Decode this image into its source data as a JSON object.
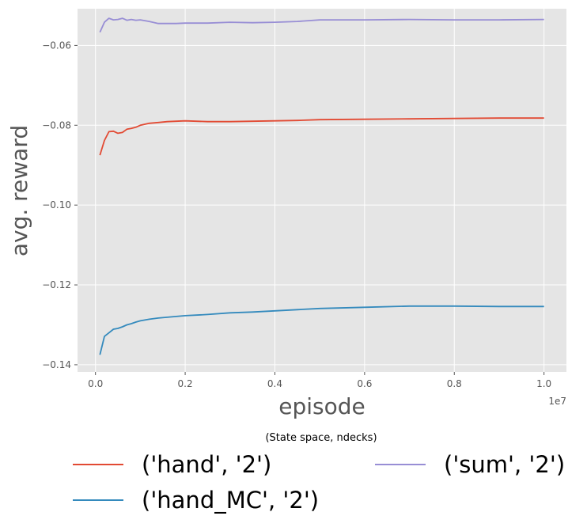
{
  "chart_data": {
    "type": "line",
    "xlabel": "episode",
    "ylabel": "avg. reward",
    "x_offset_text": "1e7",
    "xlim": [
      -0.04,
      1.05
    ],
    "ylim": [
      -0.1418,
      -0.0508
    ],
    "x_ticks": [
      0.0,
      0.2,
      0.4,
      0.6,
      0.8,
      1.0
    ],
    "x_tick_labels": [
      "0.0",
      "0.2",
      "0.4",
      "0.6",
      "0.8",
      "1.0"
    ],
    "y_ticks": [
      -0.06,
      -0.08,
      -0.1,
      -0.12,
      -0.14
    ],
    "y_tick_labels": [
      "−0.06",
      "−0.08",
      "−0.10",
      "−0.12",
      "−0.14"
    ],
    "grid": true,
    "legend_title": "(State space, ndecks)",
    "legend_position": "below",
    "colors": {
      "background": "#E5E5E5",
      "grid": "#FFFFFF"
    },
    "series": [
      {
        "name": "('hand', '2')",
        "color": "#E24A33",
        "x": [
          0.01,
          0.02,
          0.03,
          0.04,
          0.05,
          0.06,
          0.07,
          0.08,
          0.09,
          0.1,
          0.12,
          0.14,
          0.16,
          0.18,
          0.2,
          0.25,
          0.3,
          0.35,
          0.4,
          0.45,
          0.5,
          0.6,
          0.7,
          0.8,
          0.9,
          1.0
        ],
        "y": [
          -0.0875,
          -0.0838,
          -0.0816,
          -0.0815,
          -0.082,
          -0.0818,
          -0.081,
          -0.0808,
          -0.0805,
          -0.08,
          -0.0795,
          -0.0793,
          -0.0791,
          -0.079,
          -0.0789,
          -0.0791,
          -0.0791,
          -0.079,
          -0.0789,
          -0.0788,
          -0.0786,
          -0.0785,
          -0.0784,
          -0.0783,
          -0.0782,
          -0.0782
        ]
      },
      {
        "name": "('hand_MC', '2')",
        "color": "#348ABD",
        "x": [
          0.01,
          0.02,
          0.03,
          0.04,
          0.05,
          0.06,
          0.07,
          0.08,
          0.09,
          0.1,
          0.12,
          0.14,
          0.16,
          0.18,
          0.2,
          0.25,
          0.3,
          0.35,
          0.4,
          0.45,
          0.5,
          0.6,
          0.7,
          0.8,
          0.9,
          1.0
        ],
        "y": [
          -0.1375,
          -0.1329,
          -0.132,
          -0.1311,
          -0.1309,
          -0.1305,
          -0.13,
          -0.1297,
          -0.1293,
          -0.129,
          -0.1286,
          -0.1283,
          -0.1281,
          -0.1279,
          -0.1277,
          -0.1274,
          -0.127,
          -0.1268,
          -0.1265,
          -0.1262,
          -0.1259,
          -0.1256,
          -0.1253,
          -0.1253,
          -0.1254,
          -0.1254
        ]
      },
      {
        "name": "('sum', '2')",
        "color": "#988ED5",
        "x": [
          0.01,
          0.02,
          0.03,
          0.04,
          0.05,
          0.06,
          0.07,
          0.08,
          0.09,
          0.1,
          0.12,
          0.14,
          0.16,
          0.18,
          0.2,
          0.25,
          0.3,
          0.35,
          0.4,
          0.45,
          0.5,
          0.6,
          0.7,
          0.8,
          0.9,
          1.0
        ],
        "y": [
          -0.0567,
          -0.0542,
          -0.0532,
          -0.0536,
          -0.0535,
          -0.0532,
          -0.0537,
          -0.0535,
          -0.0537,
          -0.0536,
          -0.054,
          -0.0545,
          -0.0545,
          -0.0545,
          -0.0544,
          -0.0544,
          -0.0542,
          -0.0543,
          -0.0542,
          -0.054,
          -0.0536,
          -0.0536,
          -0.0535,
          -0.0536,
          -0.0536,
          -0.0535
        ]
      }
    ]
  }
}
